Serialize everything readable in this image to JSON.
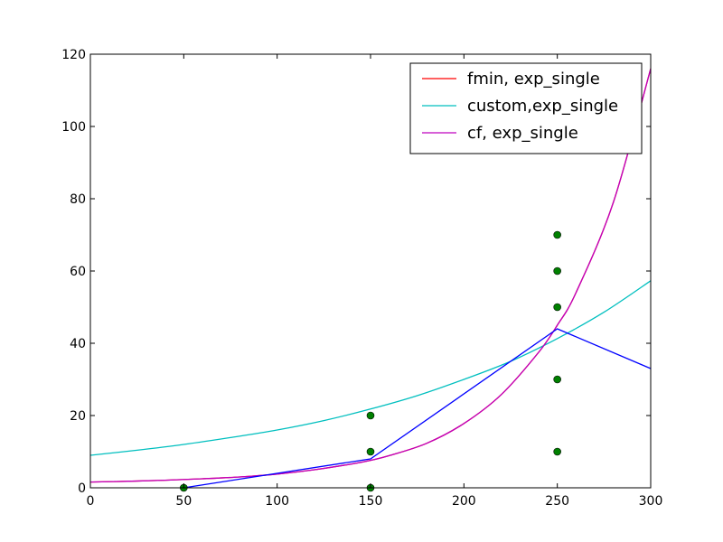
{
  "chart_data": {
    "type": "line",
    "title": "",
    "xlabel": "",
    "ylabel": "",
    "xlim": [
      0,
      300
    ],
    "ylim": [
      0,
      120
    ],
    "x_ticks": [
      0,
      50,
      100,
      150,
      200,
      250,
      300
    ],
    "y_ticks": [
      0,
      20,
      40,
      60,
      80,
      100,
      120
    ],
    "grid": false,
    "legend_position": "top-right",
    "series": [
      {
        "name": "fmin, exp_single",
        "kind": "curve",
        "color": "#ff0000",
        "x": [
          0,
          20,
          40,
          60,
          80,
          100,
          120,
          140,
          150,
          160,
          180,
          200,
          220,
          240,
          250,
          260,
          280,
          300
        ],
        "y": [
          1.6,
          1.8,
          2.1,
          2.5,
          3.0,
          3.8,
          5.0,
          6.6,
          7.6,
          8.9,
          12.3,
          17.8,
          25.8,
          37.5,
          45.0,
          54.0,
          79.0,
          116.0
        ]
      },
      {
        "name": "custom,exp_single",
        "kind": "curve",
        "color": "#00bfbf",
        "x": [
          0,
          25,
          50,
          75,
          100,
          125,
          150,
          175,
          200,
          225,
          250,
          275,
          300
        ],
        "y": [
          9.0,
          10.4,
          12.0,
          13.9,
          16.0,
          18.6,
          21.8,
          25.5,
          30.0,
          35.0,
          41.3,
          48.6,
          57.3
        ]
      },
      {
        "name": "cf, exp_single",
        "kind": "curve",
        "color": "#bf00bf",
        "x": [
          0,
          20,
          40,
          60,
          80,
          100,
          120,
          140,
          150,
          160,
          180,
          200,
          220,
          240,
          250,
          260,
          280,
          300
        ],
        "y": [
          1.6,
          1.8,
          2.1,
          2.5,
          3.0,
          3.8,
          5.0,
          6.6,
          7.6,
          8.9,
          12.3,
          17.8,
          25.8,
          37.5,
          45.0,
          54.0,
          79.0,
          116.0
        ]
      },
      {
        "kind": "polyline",
        "color": "#0000ff",
        "x": [
          50,
          150,
          250,
          300
        ],
        "y": [
          0,
          8,
          44,
          33
        ]
      }
    ],
    "points": {
      "color": "#008000",
      "x": [
        50,
        150,
        150,
        150,
        250,
        250,
        250,
        250,
        250
      ],
      "y": [
        0,
        0,
        10,
        20,
        10,
        30,
        50,
        60,
        70
      ]
    }
  }
}
